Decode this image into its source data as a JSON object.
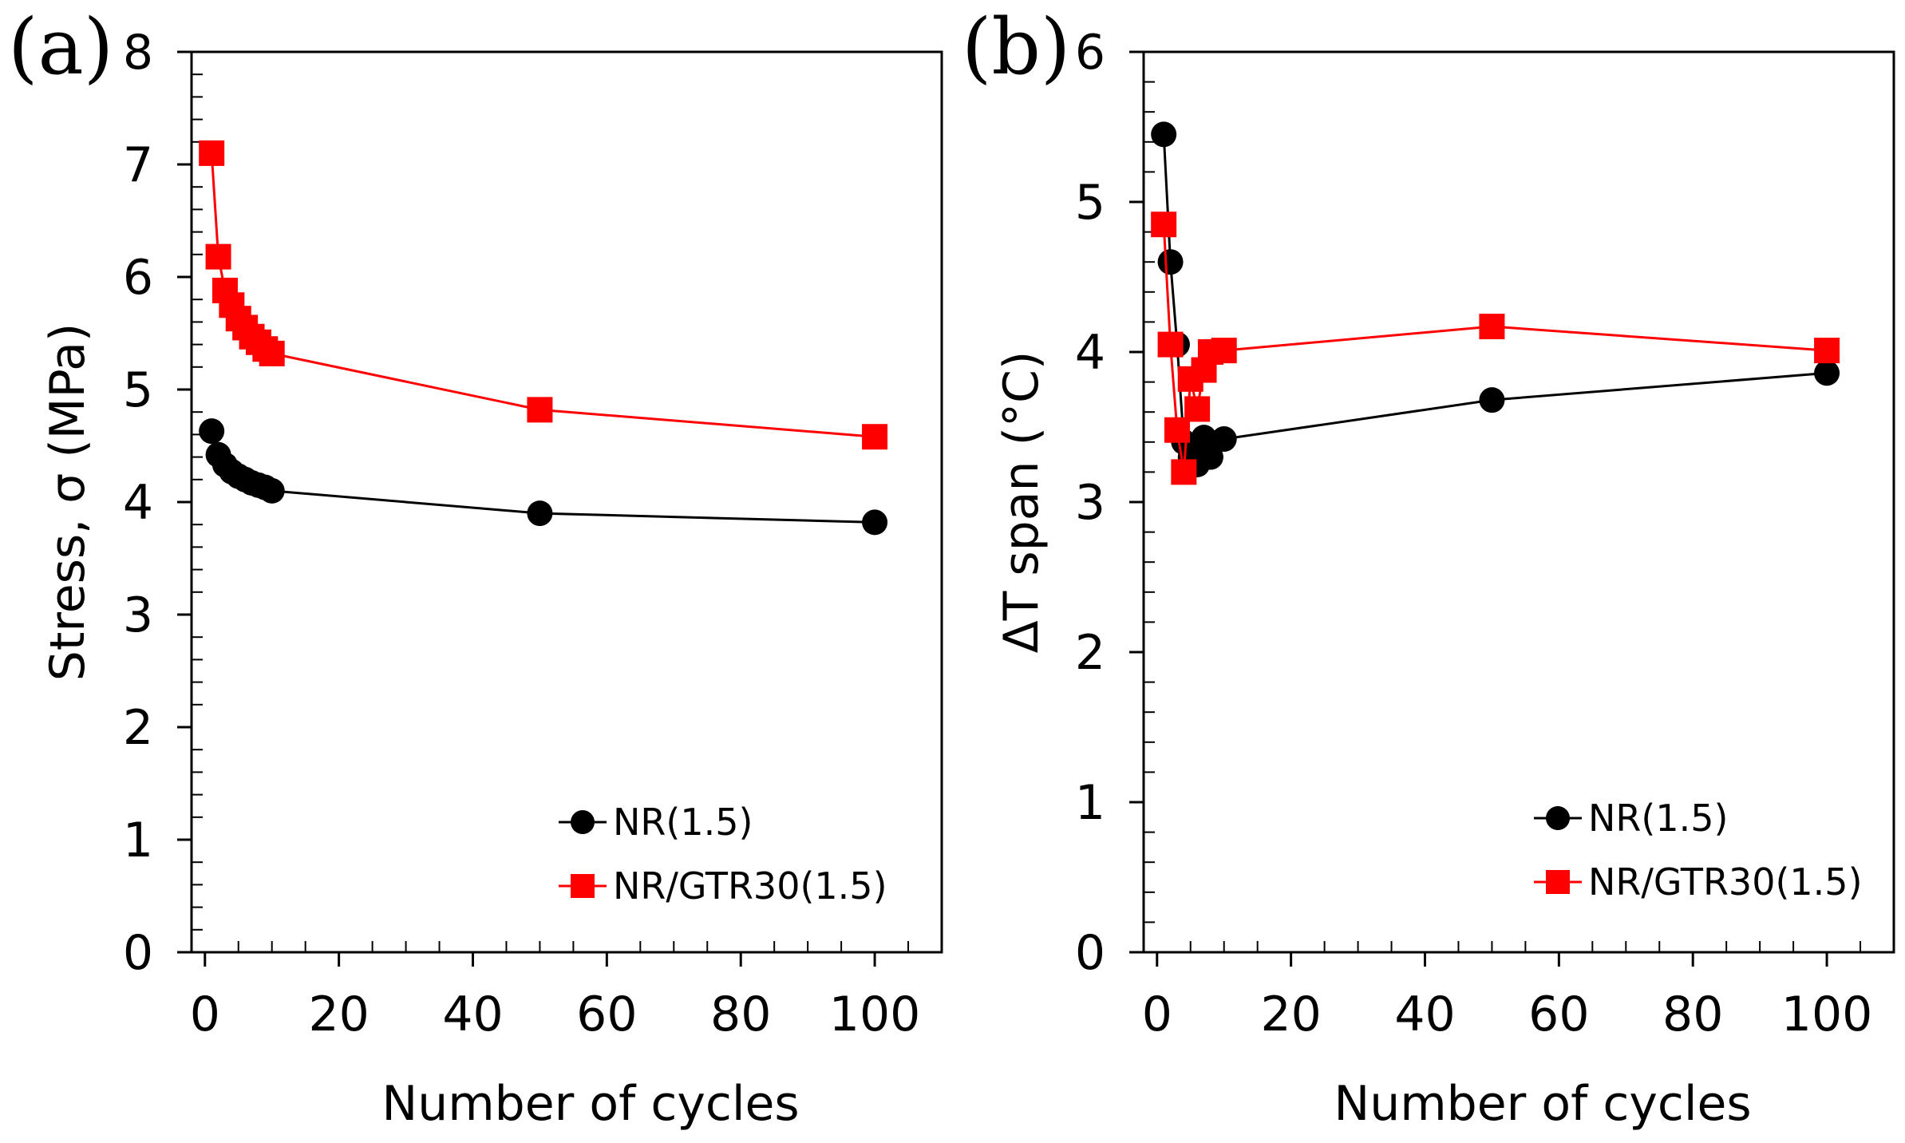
{
  "chart_data": [
    {
      "type": "line",
      "panel": "(a)",
      "xlabel": "Number of cycles",
      "ylabel": "Stress, σ (MPa)",
      "xlim": [
        -2,
        110
      ],
      "ylim": [
        0,
        8
      ],
      "xticks": [
        0,
        20,
        40,
        60,
        80,
        100
      ],
      "yticks": [
        0,
        1,
        2,
        3,
        4,
        5,
        6,
        7,
        8
      ],
      "grid": false,
      "legend_position": "bottom-right",
      "series": [
        {
          "name": "NR(1.5)",
          "color": "#000000",
          "marker": "circle",
          "x": [
            1,
            2,
            3,
            4,
            5,
            6,
            7,
            8,
            9,
            10,
            50,
            100
          ],
          "y": [
            4.63,
            4.42,
            4.33,
            4.27,
            4.23,
            4.2,
            4.17,
            4.15,
            4.13,
            4.1,
            3.9,
            3.82
          ]
        },
        {
          "name": "NR/GTR30(1.5)",
          "color": "#ff0000",
          "marker": "square",
          "x": [
            1,
            2,
            3,
            4,
            5,
            6,
            7,
            8,
            9,
            10,
            50,
            100
          ],
          "y": [
            7.1,
            6.18,
            5.88,
            5.75,
            5.63,
            5.55,
            5.47,
            5.42,
            5.36,
            5.32,
            4.82,
            4.58
          ]
        }
      ]
    },
    {
      "type": "line",
      "panel": "(b)",
      "xlabel": "Number of cycles",
      "ylabel": "ΔT span (°C)",
      "xlim": [
        -2,
        110
      ],
      "ylim": [
        0,
        6
      ],
      "xticks": [
        0,
        20,
        40,
        60,
        80,
        100
      ],
      "yticks": [
        0,
        1,
        2,
        3,
        4,
        5,
        6
      ],
      "grid": false,
      "legend_position": "bottom-right",
      "series": [
        {
          "name": "NR(1.5)",
          "color": "#000000",
          "marker": "circle",
          "x": [
            1,
            2,
            3,
            4,
            5,
            6,
            7,
            8,
            10,
            50,
            100
          ],
          "y": [
            5.45,
            4.6,
            4.05,
            3.4,
            3.3,
            3.25,
            3.43,
            3.3,
            3.42,
            3.68,
            3.86
          ],
          "y_display_only_note": ""
        },
        {
          "name": "NR/GTR30(1.5)",
          "color": "#ff0000",
          "marker": "square",
          "x": [
            1,
            2,
            3,
            4,
            5,
            6,
            7,
            8,
            10,
            50,
            100
          ],
          "y": [
            4.85,
            4.05,
            3.48,
            3.2,
            3.82,
            3.62,
            3.88,
            4.0,
            4.01,
            4.17,
            4.01
          ]
        }
      ]
    }
  ]
}
